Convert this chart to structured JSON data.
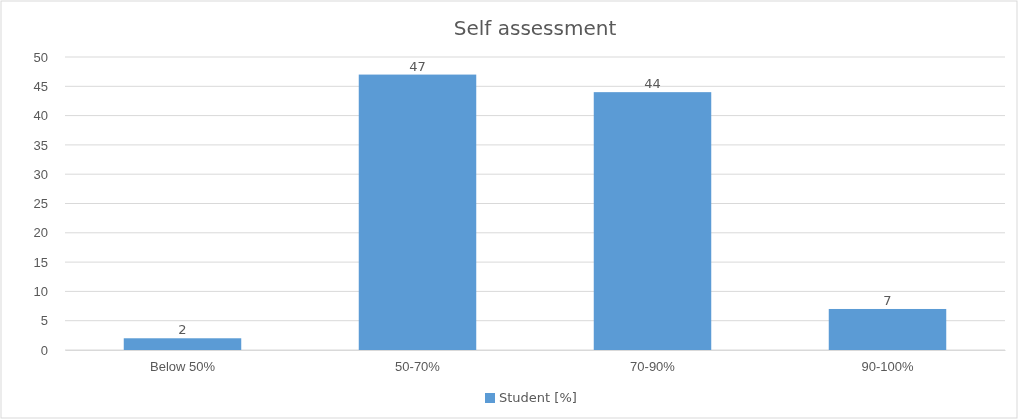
{
  "chart_data": {
    "type": "bar",
    "title": "Self assessment",
    "categories": [
      "Below 50%",
      "50-70%",
      "70-90%",
      "90-100%"
    ],
    "series": [
      {
        "name": "Student [%]",
        "color": "#5b9bd5",
        "values": [
          2,
          47,
          44,
          7
        ]
      }
    ],
    "ylim": [
      0,
      50
    ],
    "yticks": [
      0,
      5,
      10,
      15,
      20,
      25,
      30,
      35,
      40,
      45,
      50
    ],
    "grid": "y",
    "legend": "bottom",
    "data_labels": true
  }
}
